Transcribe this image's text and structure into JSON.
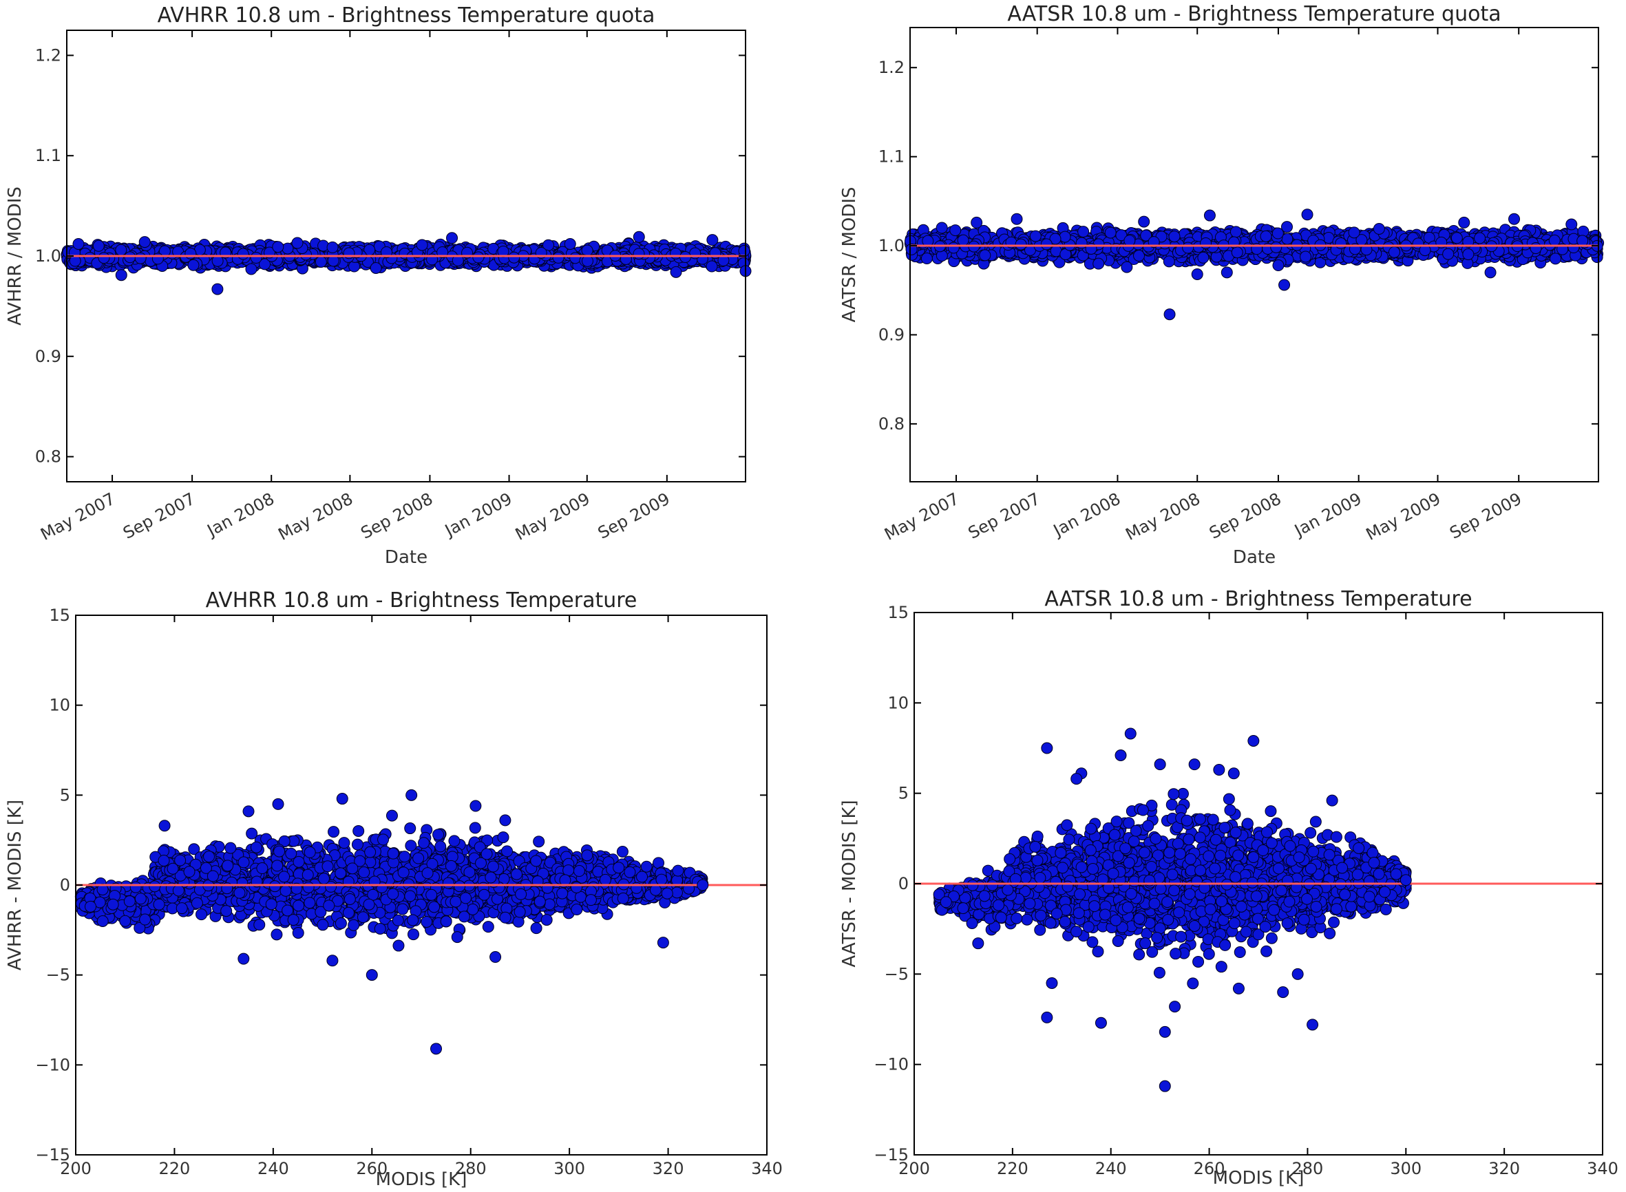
{
  "chart_data": [
    {
      "type": "scatter",
      "title": "AVHRR 10.8 um - Brightness Temperature quota",
      "xlabel": "Date",
      "ylabel": "AVHRR / MODIS",
      "x_scale": "date",
      "xlim": [
        "2007-02-20",
        "2009-12-31"
      ],
      "ylim": [
        0.775,
        1.225
      ],
      "x_ticks": [
        "May 2007",
        "Sep 2007",
        "Jan 2008",
        "May 2008",
        "Sep 2008",
        "Jan 2009",
        "May 2009",
        "Sep 2009"
      ],
      "x_tick_values": [
        "2007-05-01",
        "2007-09-01",
        "2008-01-01",
        "2008-05-01",
        "2008-09-01",
        "2009-01-01",
        "2009-05-01",
        "2009-09-01"
      ],
      "y_ticks": [
        "0.8",
        "0.9",
        "1.0",
        "1.1",
        "1.2"
      ],
      "y_tick_values": [
        0.8,
        0.9,
        1.0,
        1.1,
        1.2
      ],
      "reference_line": {
        "y": 1.0,
        "color": "#cc2222"
      },
      "band": {
        "center": 1.0,
        "spread": 0.006
      },
      "points": [
        {
          "x": "2007-05-15",
          "y": 0.981
        },
        {
          "x": "2007-10-10",
          "y": 0.967
        },
        {
          "x": "2008-10-05",
          "y": 1.018
        },
        {
          "x": "2009-07-20",
          "y": 1.019
        },
        {
          "x": "2009-11-10",
          "y": 1.016
        },
        {
          "x": "2009-12-31",
          "y": 0.985
        },
        {
          "x": "2007-03-10",
          "y": 1.012
        },
        {
          "x": "2007-06-20",
          "y": 1.014
        },
        {
          "x": "2008-02-10",
          "y": 1.013
        },
        {
          "x": "2008-08-20",
          "y": 1.011
        },
        {
          "x": "2009-04-05",
          "y": 1.012
        },
        {
          "x": "2009-09-15",
          "y": 0.984
        },
        {
          "x": "2008-06-10",
          "y": 0.988
        },
        {
          "x": "2007-12-01",
          "y": 0.987
        }
      ]
    },
    {
      "type": "scatter",
      "title": "AATSR 10.8 um - Brightness Temperature quota",
      "xlabel": "Date",
      "ylabel": "AATSR / MODIS",
      "x_scale": "date",
      "xlim": [
        "2007-02-20",
        "2009-12-31"
      ],
      "ylim": [
        0.735,
        1.245
      ],
      "x_ticks": [
        "May 2007",
        "Sep 2007",
        "Jan 2008",
        "May 2008",
        "Sep 2008",
        "Jan 2009",
        "May 2009",
        "Sep 2009"
      ],
      "x_tick_values": [
        "2007-05-01",
        "2007-09-01",
        "2008-01-01",
        "2008-05-01",
        "2008-09-01",
        "2009-01-01",
        "2009-05-01",
        "2009-09-01"
      ],
      "y_ticks": [
        "0.8",
        "0.9",
        "1.0",
        "1.1",
        "1.2"
      ],
      "y_tick_values": [
        0.8,
        0.9,
        1.0,
        1.1,
        1.2
      ],
      "reference_line": {
        "y": 1.0,
        "color": "#cc2222"
      },
      "band": {
        "center": 1.0,
        "spread": 0.01
      },
      "points": [
        {
          "x": "2008-03-20",
          "y": 0.923
        },
        {
          "x": "2008-09-10",
          "y": 0.956
        },
        {
          "x": "2008-05-01",
          "y": 0.968
        },
        {
          "x": "2008-06-15",
          "y": 0.97
        },
        {
          "x": "2008-05-20",
          "y": 1.034
        },
        {
          "x": "2008-10-15",
          "y": 1.035
        },
        {
          "x": "2007-08-01",
          "y": 1.03
        },
        {
          "x": "2007-06-01",
          "y": 1.026
        },
        {
          "x": "2008-02-10",
          "y": 1.027
        },
        {
          "x": "2009-06-10",
          "y": 1.026
        },
        {
          "x": "2009-08-25",
          "y": 1.03
        },
        {
          "x": "2009-07-20",
          "y": 0.97
        },
        {
          "x": "2008-01-15",
          "y": 0.976
        },
        {
          "x": "2008-09-01",
          "y": 0.978
        },
        {
          "x": "2009-02-01",
          "y": 1.019
        },
        {
          "x": "2009-11-20",
          "y": 1.024
        }
      ]
    },
    {
      "type": "scatter",
      "title": "AVHRR 10.8 um - Brightness Temperature",
      "xlabel": "MODIS [K]",
      "ylabel": "AVHRR - MODIS [K]",
      "xlim": [
        200,
        340
      ],
      "ylim": [
        -15,
        15
      ],
      "x_ticks": [
        200,
        220,
        240,
        260,
        280,
        300,
        320,
        340
      ],
      "y_ticks": [
        -15,
        -10,
        -5,
        0,
        5,
        10,
        15
      ],
      "y_tick_labels": [
        "−15",
        "−10",
        "−5",
        "0",
        "5",
        "10",
        "15"
      ],
      "reference_line": {
        "y": 0,
        "color": "#ff6666"
      },
      "cloud": {
        "x_range": [
          201,
          327
        ],
        "center_x": 262,
        "max_spread": 1.6
      },
      "points": [
        {
          "x": 273,
          "y": -9.1
        },
        {
          "x": 268,
          "y": 5.0
        },
        {
          "x": 254,
          "y": 4.8
        },
        {
          "x": 241,
          "y": 4.5
        },
        {
          "x": 235,
          "y": 4.1
        },
        {
          "x": 218,
          "y": 3.3
        },
        {
          "x": 281,
          "y": 4.4
        },
        {
          "x": 260,
          "y": -5.0
        },
        {
          "x": 252,
          "y": -4.2
        },
        {
          "x": 234,
          "y": -4.1
        },
        {
          "x": 285,
          "y": -4.0
        },
        {
          "x": 319,
          "y": -3.2
        },
        {
          "x": 327,
          "y": 0.0
        },
        {
          "x": 322,
          "y": 0.8
        },
        {
          "x": 287,
          "y": 3.6
        },
        {
          "x": 210,
          "y": -2.0
        },
        {
          "x": 203,
          "y": -1.2
        }
      ]
    },
    {
      "type": "scatter",
      "title": "AATSR 10.8 um - Brightness Temperature",
      "xlabel": "MODIS [K]",
      "ylabel": "AATSR - MODIS [K]",
      "xlim": [
        200,
        340
      ],
      "ylim": [
        -15,
        15
      ],
      "x_ticks": [
        200,
        220,
        240,
        260,
        280,
        300,
        320,
        340
      ],
      "y_ticks": [
        -15,
        -10,
        -5,
        0,
        5,
        10,
        15
      ],
      "y_tick_labels": [
        "−15",
        "−10",
        "−5",
        "0",
        "5",
        "10",
        "15"
      ],
      "reference_line": {
        "y": 0,
        "color": "#ff6666"
      },
      "cloud": {
        "x_range": [
          205,
          300
        ],
        "center_x": 255,
        "max_spread": 2.4
      },
      "points": [
        {
          "x": 251,
          "y": -11.2
        },
        {
          "x": 244,
          "y": 8.3
        },
        {
          "x": 269,
          "y": 7.9
        },
        {
          "x": 227,
          "y": 7.5
        },
        {
          "x": 242,
          "y": 7.1
        },
        {
          "x": 227,
          "y": -7.4
        },
        {
          "x": 238,
          "y": -7.7
        },
        {
          "x": 281,
          "y": -7.8
        },
        {
          "x": 251,
          "y": -8.2
        },
        {
          "x": 253,
          "y": -6.8
        },
        {
          "x": 285,
          "y": 4.6
        },
        {
          "x": 300,
          "y": 0.2
        },
        {
          "x": 234,
          "y": 6.1
        },
        {
          "x": 233,
          "y": 5.8
        },
        {
          "x": 250,
          "y": 6.6
        },
        {
          "x": 257,
          "y": 6.6
        },
        {
          "x": 262,
          "y": 6.3
        },
        {
          "x": 265,
          "y": 6.1
        },
        {
          "x": 228,
          "y": -5.5
        },
        {
          "x": 266,
          "y": -5.8
        },
        {
          "x": 213,
          "y": -3.3
        },
        {
          "x": 275,
          "y": -6.0
        },
        {
          "x": 278,
          "y": -5.0
        }
      ]
    }
  ]
}
